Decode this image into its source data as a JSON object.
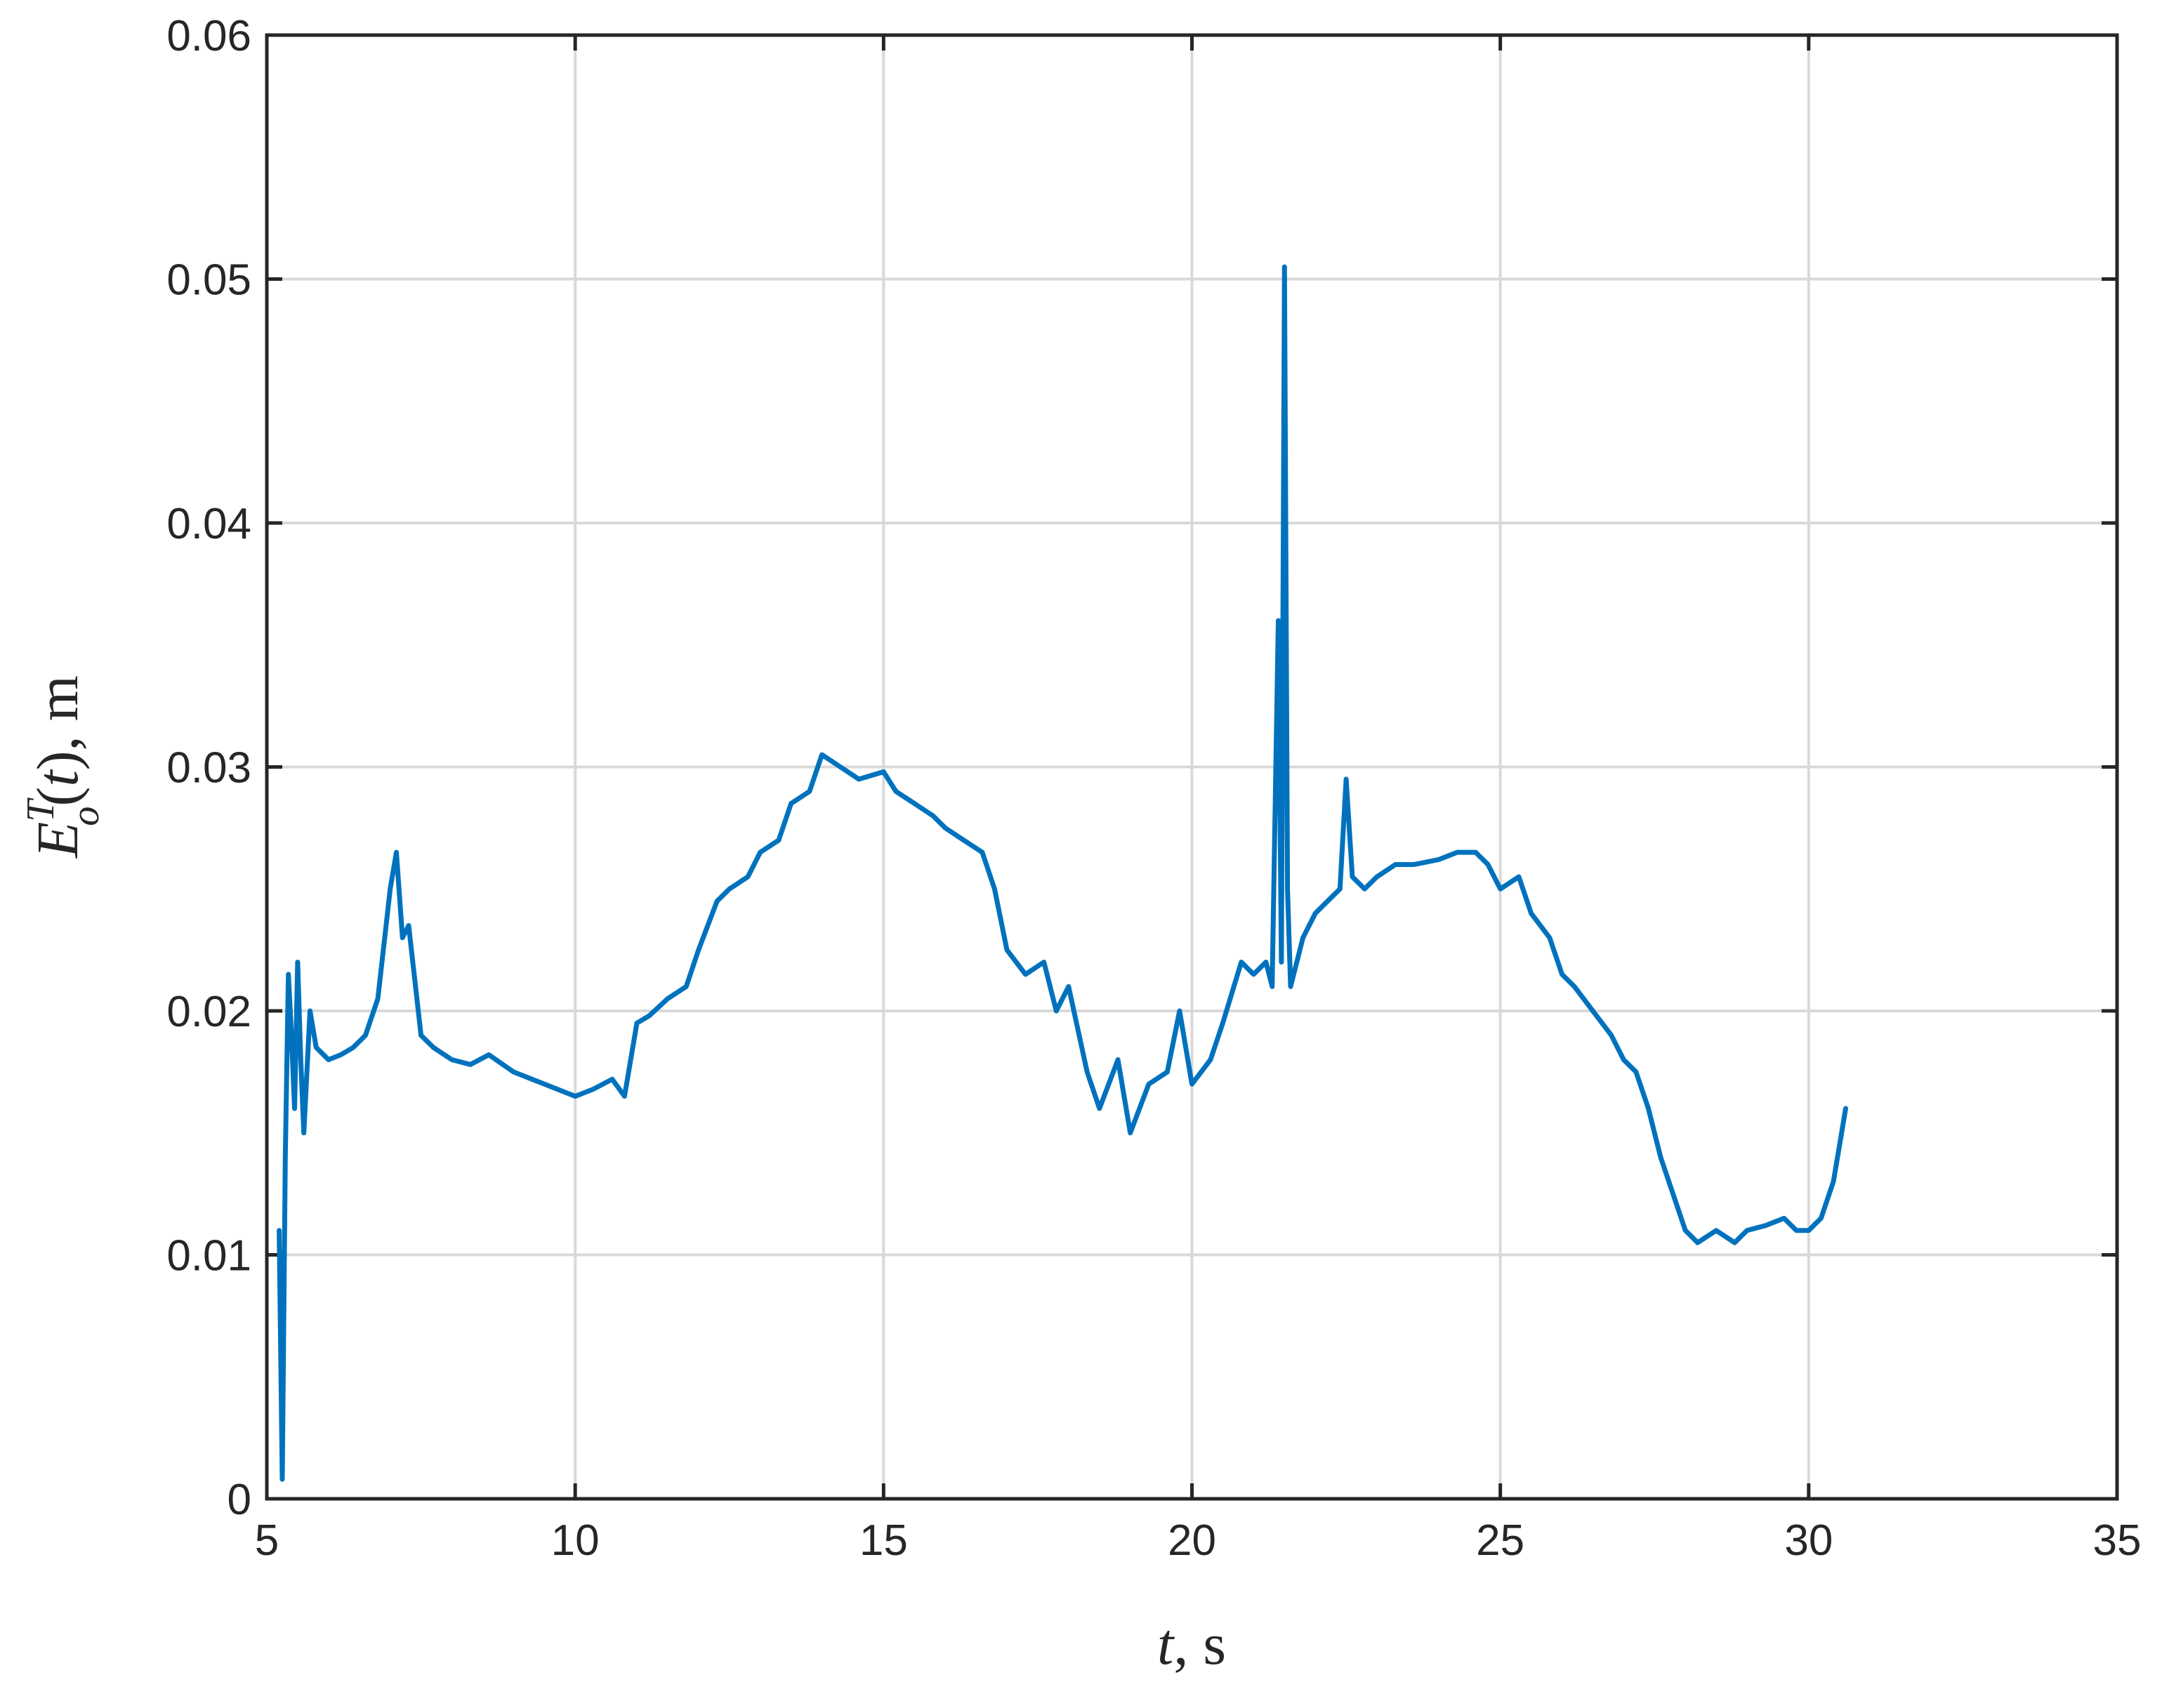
{
  "chart_data": {
    "type": "line",
    "title": "",
    "xlabel": "t, s",
    "ylabel": "E_o^T(t), m",
    "xlim": [
      5,
      35
    ],
    "ylim": [
      0,
      0.06
    ],
    "xticks": [
      5,
      10,
      15,
      20,
      25,
      30,
      35
    ],
    "yticks": [
      0,
      0.01,
      0.02,
      0.03,
      0.04,
      0.05,
      0.06
    ],
    "xtick_labels": [
      "5",
      "10",
      "15",
      "20",
      "25",
      "30",
      "35"
    ],
    "ytick_labels": [
      "0",
      "0.01",
      "0.02",
      "0.03",
      "0.04",
      "0.05",
      "0.06"
    ],
    "grid": true,
    "legend": "none",
    "series": [
      {
        "color": "#0072BD",
        "x": [
          5.2,
          5.25,
          5.3,
          5.35,
          5.4,
          5.45,
          5.5,
          5.55,
          5.6,
          5.7,
          5.8,
          6.0,
          6.2,
          6.4,
          6.6,
          6.8,
          7.0,
          7.1,
          7.2,
          7.3,
          7.5,
          7.7,
          8.0,
          8.3,
          8.6,
          9.0,
          9.5,
          10.0,
          10.3,
          10.6,
          10.8,
          11.0,
          11.2,
          11.5,
          11.8,
          12.0,
          12.3,
          12.5,
          12.8,
          13.0,
          13.3,
          13.5,
          13.8,
          14.0,
          14.3,
          14.6,
          15.0,
          15.2,
          15.5,
          15.8,
          16.0,
          16.3,
          16.6,
          16.8,
          17.0,
          17.3,
          17.6,
          17.8,
          18.0,
          18.3,
          18.5,
          18.8,
          19.0,
          19.3,
          19.6,
          19.8,
          20.0,
          20.3,
          20.5,
          20.8,
          21.0,
          21.2,
          21.3,
          21.4,
          21.45,
          21.5,
          21.55,
          21.6,
          21.8,
          22.0,
          22.2,
          22.4,
          22.5,
          22.6,
          22.8,
          23.0,
          23.3,
          23.6,
          24.0,
          24.3,
          24.6,
          24.8,
          25.0,
          25.3,
          25.5,
          25.8,
          26.0,
          26.2,
          26.5,
          26.8,
          27.0,
          27.2,
          27.4,
          27.6,
          27.8,
          28.0,
          28.2,
          28.5,
          28.8,
          29.0,
          29.3,
          29.6,
          29.8,
          30.0,
          30.2,
          30.4,
          30.5,
          30.6
        ],
        "y": [
          0.011,
          0.0008,
          0.014,
          0.0215,
          0.019,
          0.016,
          0.022,
          0.018,
          0.015,
          0.02,
          0.0185,
          0.018,
          0.0182,
          0.0185,
          0.019,
          0.0205,
          0.025,
          0.0265,
          0.023,
          0.0235,
          0.019,
          0.0185,
          0.018,
          0.0178,
          0.0182,
          0.0175,
          0.017,
          0.0165,
          0.0168,
          0.0172,
          0.0165,
          0.0195,
          0.0198,
          0.0205,
          0.021,
          0.0225,
          0.0245,
          0.025,
          0.0255,
          0.0265,
          0.027,
          0.0285,
          0.029,
          0.0305,
          0.03,
          0.0295,
          0.0298,
          0.029,
          0.0285,
          0.028,
          0.0275,
          0.027,
          0.0265,
          0.025,
          0.0225,
          0.0215,
          0.022,
          0.02,
          0.021,
          0.0175,
          0.016,
          0.018,
          0.015,
          0.017,
          0.0175,
          0.02,
          0.017,
          0.018,
          0.0195,
          0.022,
          0.0215,
          0.022,
          0.021,
          0.036,
          0.022,
          0.0505,
          0.025,
          0.021,
          0.023,
          0.024,
          0.0245,
          0.025,
          0.0295,
          0.0255,
          0.025,
          0.0255,
          0.026,
          0.026,
          0.0262,
          0.0265,
          0.0265,
          0.026,
          0.025,
          0.0255,
          0.024,
          0.023,
          0.0215,
          0.021,
          0.02,
          0.019,
          0.018,
          0.0175,
          0.016,
          0.014,
          0.0125,
          0.011,
          0.0105,
          0.011,
          0.0105,
          0.011,
          0.0112,
          0.0115,
          0.011,
          0.011,
          0.0115,
          0.013,
          0.0145,
          0.016
        ]
      }
    ]
  }
}
